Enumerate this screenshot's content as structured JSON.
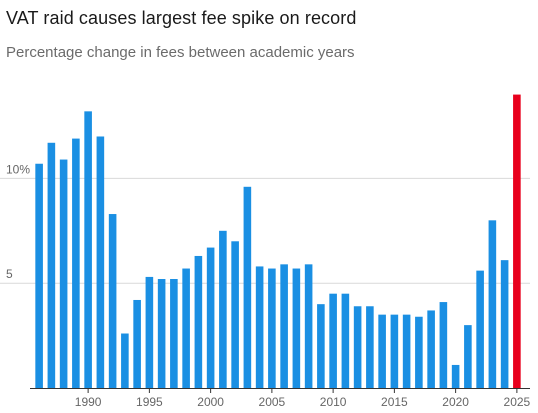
{
  "title": "VAT raid causes largest fee spike on record",
  "subtitle": "Percentage change in fees between academic years",
  "colors": {
    "bar": "#1a8fe3",
    "highlight": "#e8001c",
    "grid": "#d9d9d9",
    "axis": "#333333",
    "tick_text": "#666666"
  },
  "chart_data": {
    "type": "bar",
    "title": "VAT raid causes largest fee spike on record",
    "subtitle": "Percentage change in fees between academic years",
    "xlabel": "",
    "ylabel": "",
    "categories": [
      1986,
      1987,
      1988,
      1989,
      1990,
      1991,
      1992,
      1993,
      1994,
      1995,
      1996,
      1997,
      1998,
      1999,
      2000,
      2001,
      2002,
      2003,
      2004,
      2005,
      2006,
      2007,
      2008,
      2009,
      2010,
      2011,
      2012,
      2013,
      2014,
      2015,
      2016,
      2017,
      2018,
      2019,
      2020,
      2021,
      2022,
      2023,
      2024,
      2025
    ],
    "values": [
      10.7,
      11.7,
      10.9,
      11.9,
      13.2,
      12.0,
      8.3,
      2.6,
      4.2,
      5.3,
      5.2,
      5.2,
      5.7,
      6.3,
      6.7,
      7.5,
      7.0,
      9.6,
      5.8,
      5.7,
      5.9,
      5.7,
      5.9,
      4.0,
      4.5,
      4.5,
      3.9,
      3.9,
      3.5,
      3.5,
      3.5,
      3.4,
      3.7,
      4.1,
      1.1,
      3.0,
      5.6,
      8.0,
      6.1,
      14.0
    ],
    "highlight_category": 2025,
    "x_ticks": [
      "1990",
      "1995",
      "2000",
      "2005",
      "2010",
      "2015",
      "2020",
      "2025"
    ],
    "y_ticks": [
      {
        "value": 5,
        "label": "5"
      },
      {
        "value": 10,
        "label": "10%"
      }
    ],
    "ylim": [
      0,
      14.6
    ],
    "grid": "horizontal",
    "legend": "none"
  }
}
